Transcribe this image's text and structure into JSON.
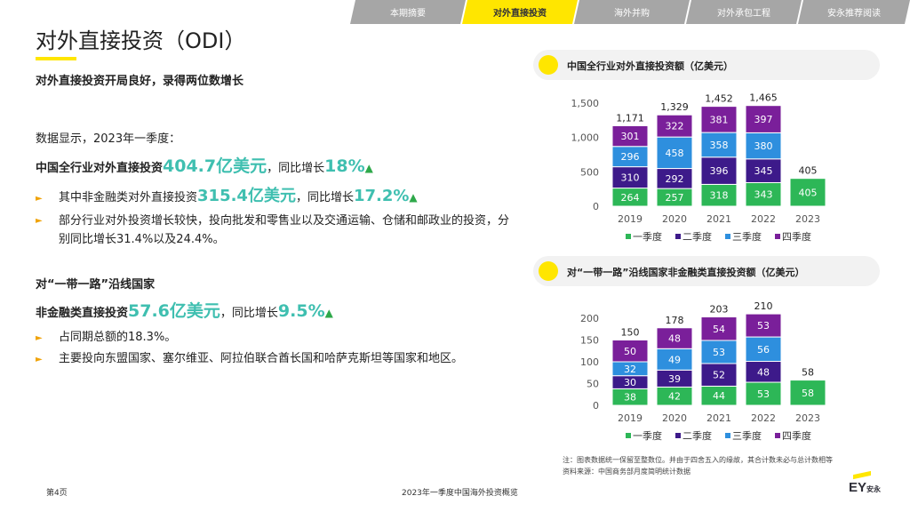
{
  "tabs": [
    {
      "label": "本期摘要",
      "active": false
    },
    {
      "label": "对外直接投资",
      "active": true
    },
    {
      "label": "海外并购",
      "active": false
    },
    {
      "label": "对外承包工程",
      "active": false
    },
    {
      "label": "安永推荐阅读",
      "active": false
    }
  ],
  "page_title": "对外直接投资（ODI）",
  "section1": {
    "heading": "对外直接投资开局良好，录得两位数增长",
    "intro": "数据显示，2023年一季度：",
    "line1_prefix": "中国全行业对外直接投资",
    "line1_value": "404.7亿美元",
    "line1_mid": "，同比增长",
    "line1_growth": "18%",
    "bullet1_prefix": "其中非金融类对外直接投资",
    "bullet1_value": "315.4亿美元",
    "bullet1_mid": "，同比增长",
    "bullet1_growth": "17.2%",
    "bullet2": "部分行业对外投资增长较快，投向批发和零售业以及交通运输、仓储和邮政业的投资，分别同比增长31.4%以及24.4%。"
  },
  "section2": {
    "heading": "对“一带一路”沿线国家",
    "line_prefix": "非金融类直接投资",
    "line_value": "57.6亿美元",
    "line_mid": "，同比增长",
    "line_growth": "9.5%",
    "bullet1": "占同期总额的18.3%。",
    "bullet2": "主要投向东盟国家、塞尔维亚、阿拉伯联合酋长国和哈萨克斯坦等国家和地区。"
  },
  "triangle_glyph": "▲",
  "bullet_glyph": "►",
  "colors": {
    "q1": "#2db757",
    "q2": "#3d1a8a",
    "q3": "#2e8fde",
    "q4": "#7a1f9a",
    "accent_yellow": "#ffe600",
    "teal": "#3fbfb0"
  },
  "chart_data": [
    {
      "type": "bar",
      "stacked": true,
      "title": "中国全行业对外直接投资额（亿美元）",
      "categories": [
        "2019",
        "2020",
        "2021",
        "2022",
        "2023"
      ],
      "series": [
        {
          "name": "一季度",
          "values": [
            264,
            257,
            318,
            343,
            405
          ]
        },
        {
          "name": "二季度",
          "values": [
            310,
            292,
            396,
            345,
            null
          ]
        },
        {
          "name": "三季度",
          "values": [
            296,
            458,
            358,
            380,
            null
          ]
        },
        {
          "name": "四季度",
          "values": [
            301,
            322,
            381,
            397,
            null
          ]
        }
      ],
      "totals": [
        1171,
        1329,
        1452,
        1465,
        405
      ],
      "yticks": [
        0,
        500,
        1000,
        1500
      ],
      "ytick_labels": [
        "0",
        "500",
        "1,000",
        "1,500"
      ],
      "total_labels": [
        "1,171",
        "1,329",
        "1,452",
        "1,465",
        "405"
      ],
      "ylim": [
        0,
        1500
      ],
      "legend": "bottom",
      "grid": false
    },
    {
      "type": "bar",
      "stacked": true,
      "title": "对“一带一路”沿线国家非金融类直接投资额（亿美元）",
      "categories": [
        "2019",
        "2020",
        "2021",
        "2022",
        "2023"
      ],
      "series": [
        {
          "name": "一季度",
          "values": [
            38,
            42,
            44,
            53,
            58
          ]
        },
        {
          "name": "二季度",
          "values": [
            30,
            39,
            52,
            48,
            null
          ]
        },
        {
          "name": "三季度",
          "values": [
            32,
            49,
            53,
            56,
            null
          ]
        },
        {
          "name": "四季度",
          "values": [
            50,
            48,
            54,
            53,
            null
          ]
        }
      ],
      "totals": [
        150,
        178,
        203,
        210,
        58
      ],
      "yticks": [
        0,
        50,
        100,
        150,
        200
      ],
      "ytick_labels": [
        "0",
        "50",
        "100",
        "150",
        "200"
      ],
      "total_labels": [
        "150",
        "178",
        "203",
        "210",
        "58"
      ],
      "ylim": [
        0,
        200
      ],
      "legend": "bottom",
      "grid": false
    }
  ],
  "notes": {
    "line1": "注：图表数据统一保留至整数位。并由于四舍五入的缘故，其合计数未必与总计数相等",
    "line2": "资料来源：中国商务部月度简明统计数据"
  },
  "footer": {
    "page": "第4页",
    "doc_title": "2023年一季度中国海外投资概览",
    "logo": "EY",
    "logo_cn": "安永"
  }
}
